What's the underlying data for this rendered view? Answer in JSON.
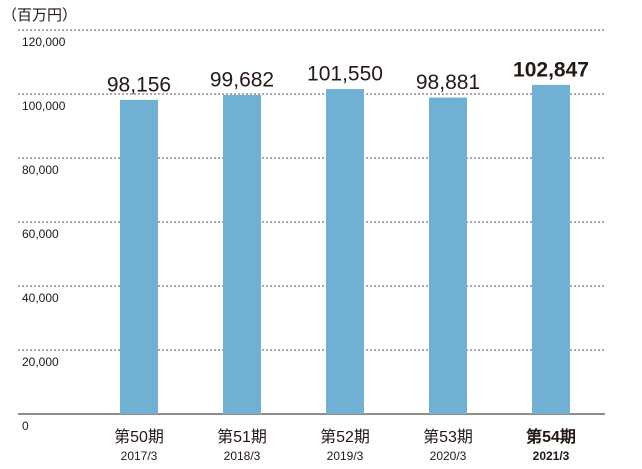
{
  "chart_data": {
    "type": "bar",
    "y_label": "（百万円）",
    "categories": [
      "第50期",
      "第51期",
      "第52期",
      "第53期",
      "第54期"
    ],
    "sublabels": [
      "2017/3",
      "2018/3",
      "2019/3",
      "2020/3",
      "2021/3"
    ],
    "values": [
      98156,
      99682,
      101550,
      98881,
      102847
    ],
    "value_labels": [
      "98,156",
      "99,682",
      "101,550",
      "98,881",
      "102,847"
    ],
    "highlight_index": 4,
    "color": "#6fb0d3",
    "ylim": [
      0,
      120000
    ],
    "yticks": [
      0,
      {
        "value": 20000,
        "label": "20,000"
      },
      {
        "value": 40000,
        "label": "40,000"
      },
      {
        "value": 60000,
        "label": "60,000"
      },
      {
        "value": 80000,
        "label": "80,000"
      },
      {
        "value": 100000,
        "label": "100,000"
      },
      {
        "value": 120000,
        "label": "120,000"
      }
    ],
    "grid": true
  }
}
